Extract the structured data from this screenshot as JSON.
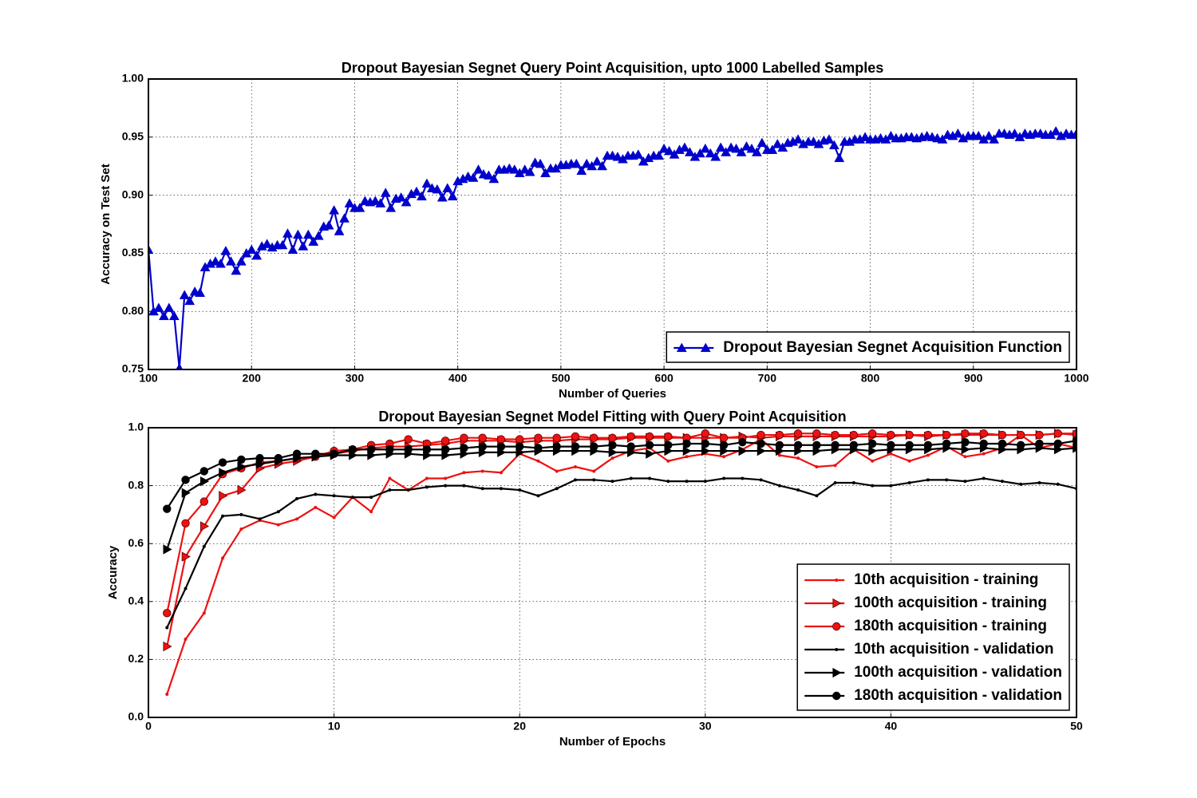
{
  "chart_data": [
    {
      "type": "line",
      "title": "Dropout Bayesian Segnet Query Point Acquisition, upto 1000 Labelled Samples",
      "xlabel": "Number of Queries",
      "ylabel": "Accuracy on Test Set",
      "xlim": [
        100,
        1000
      ],
      "ylim": [
        0.75,
        1.0
      ],
      "xticks": [
        100,
        200,
        300,
        400,
        500,
        600,
        700,
        800,
        900,
        1000
      ],
      "yticks": [
        0.75,
        {
          "value": 0.8,
          "label": "0.80"
        },
        0.85,
        {
          "value": 0.9,
          "label": "0.90"
        },
        0.95,
        {
          "value": 1.0,
          "label": "1.00"
        }
      ],
      "grid": true,
      "legend": "lower right",
      "x": [
        100,
        105,
        110,
        115,
        120,
        125,
        130,
        135,
        140,
        145,
        150,
        155,
        160,
        165,
        170,
        175,
        180,
        185,
        190,
        195,
        200,
        205,
        210,
        215,
        220,
        225,
        230,
        235,
        240,
        245,
        250,
        255,
        260,
        265,
        270,
        275,
        280,
        285,
        290,
        295,
        300,
        305,
        310,
        315,
        320,
        325,
        330,
        335,
        340,
        345,
        350,
        355,
        360,
        365,
        370,
        375,
        380,
        385,
        390,
        395,
        400,
        405,
        410,
        415,
        420,
        425,
        430,
        435,
        440,
        445,
        450,
        455,
        460,
        465,
        470,
        475,
        480,
        485,
        490,
        495,
        500,
        505,
        510,
        515,
        520,
        525,
        530,
        535,
        540,
        545,
        550,
        555,
        560,
        565,
        570,
        575,
        580,
        585,
        590,
        595,
        600,
        605,
        610,
        615,
        620,
        625,
        630,
        635,
        640,
        645,
        650,
        655,
        660,
        665,
        670,
        675,
        680,
        685,
        690,
        695,
        700,
        705,
        710,
        715,
        720,
        725,
        730,
        735,
        740,
        745,
        750,
        755,
        760,
        765,
        770,
        775,
        780,
        785,
        790,
        795,
        800,
        805,
        810,
        815,
        820,
        825,
        830,
        835,
        840,
        845,
        850,
        855,
        860,
        865,
        870,
        875,
        880,
        885,
        890,
        895,
        900,
        905,
        910,
        915,
        920,
        925,
        930,
        935,
        940,
        945,
        950,
        955,
        960,
        965,
        970,
        975,
        980,
        985,
        990,
        995,
        1000
      ],
      "series": [
        {
          "name": "Dropout Bayesian Segnet Acquisition Function",
          "color": "#0000cc",
          "marker": "triangle",
          "values": [
            0.853,
            0.8,
            0.803,
            0.796,
            0.803,
            0.796,
            0.751,
            0.814,
            0.809,
            0.817,
            0.816,
            0.838,
            0.841,
            0.843,
            0.841,
            0.852,
            0.843,
            0.835,
            0.843,
            0.85,
            0.853,
            0.848,
            0.856,
            0.858,
            0.855,
            0.857,
            0.857,
            0.867,
            0.853,
            0.866,
            0.856,
            0.866,
            0.86,
            0.865,
            0.873,
            0.874,
            0.887,
            0.869,
            0.88,
            0.893,
            0.889,
            0.889,
            0.895,
            0.894,
            0.895,
            0.893,
            0.902,
            0.889,
            0.897,
            0.898,
            0.894,
            0.901,
            0.903,
            0.899,
            0.91,
            0.906,
            0.905,
            0.898,
            0.906,
            0.899,
            0.912,
            0.914,
            0.916,
            0.915,
            0.922,
            0.918,
            0.917,
            0.914,
            0.922,
            0.922,
            0.923,
            0.922,
            0.919,
            0.922,
            0.92,
            0.928,
            0.927,
            0.919,
            0.923,
            0.923,
            0.926,
            0.926,
            0.927,
            0.927,
            0.921,
            0.927,
            0.925,
            0.929,
            0.925,
            0.934,
            0.934,
            0.933,
            0.931,
            0.934,
            0.934,
            0.935,
            0.929,
            0.932,
            0.934,
            0.934,
            0.94,
            0.938,
            0.935,
            0.939,
            0.941,
            0.937,
            0.933,
            0.936,
            0.94,
            0.936,
            0.933,
            0.941,
            0.937,
            0.941,
            0.94,
            0.937,
            0.942,
            0.94,
            0.937,
            0.945,
            0.939,
            0.939,
            0.944,
            0.941,
            0.945,
            0.946,
            0.948,
            0.944,
            0.946,
            0.946,
            0.944,
            0.947,
            0.948,
            0.943,
            0.932,
            0.946,
            0.946,
            0.948,
            0.948,
            0.95,
            0.948,
            0.948,
            0.949,
            0.948,
            0.951,
            0.949,
            0.949,
            0.95,
            0.95,
            0.949,
            0.95,
            0.951,
            0.95,
            0.949,
            0.948,
            0.952,
            0.951,
            0.953,
            0.949,
            0.951,
            0.951,
            0.951,
            0.948,
            0.951,
            0.948,
            0.953,
            0.953,
            0.952,
            0.953,
            0.95,
            0.953,
            0.952,
            0.953,
            0.953,
            0.952,
            0.952,
            0.955,
            0.951,
            0.953,
            0.952,
            0.953
          ]
        }
      ]
    },
    {
      "type": "line",
      "title": "Dropout Bayesian Segnet Model Fitting with Query Point Acquisition",
      "xlabel": "Number of Epochs",
      "ylabel": "Accuracy",
      "xlim": [
        0,
        50
      ],
      "ylim": [
        0,
        1.0
      ],
      "xticks": [
        0,
        10,
        20,
        30,
        40,
        50
      ],
      "yticks": [
        {
          "value": 0,
          "label": "0.0"
        },
        0.2,
        0.4,
        0.6,
        0.8,
        {
          "value": 1.0,
          "label": "1.0"
        }
      ],
      "grid": true,
      "legend": "lower right",
      "x": [
        1,
        2,
        3,
        4,
        5,
        6,
        7,
        8,
        9,
        10,
        11,
        12,
        13,
        14,
        15,
        16,
        17,
        18,
        19,
        20,
        21,
        22,
        23,
        24,
        25,
        26,
        27,
        28,
        29,
        30,
        31,
        32,
        33,
        34,
        35,
        36,
        37,
        38,
        39,
        40,
        41,
        42,
        43,
        44,
        45,
        46,
        47,
        48,
        49,
        50
      ],
      "series": [
        {
          "name": "10th acquisition - training",
          "color": "#ee1111",
          "marker": "point",
          "values": [
            0.08,
            0.27,
            0.36,
            0.55,
            0.65,
            0.68,
            0.665,
            0.685,
            0.725,
            0.69,
            0.76,
            0.71,
            0.825,
            0.785,
            0.825,
            0.825,
            0.845,
            0.85,
            0.845,
            0.91,
            0.885,
            0.85,
            0.865,
            0.85,
            0.895,
            0.92,
            0.93,
            0.885,
            0.9,
            0.91,
            0.9,
            0.925,
            0.96,
            0.905,
            0.895,
            0.865,
            0.87,
            0.925,
            0.885,
            0.91,
            0.885,
            0.905,
            0.935,
            0.9,
            0.91,
            0.93,
            0.975,
            0.93,
            0.945,
            0.93
          ]
        },
        {
          "name": "100th acquisition - training",
          "color": "#ee1111",
          "marker": "triangle-right",
          "values": [
            0.245,
            0.555,
            0.66,
            0.765,
            0.785,
            0.86,
            0.875,
            0.885,
            0.9,
            0.91,
            0.92,
            0.93,
            0.935,
            0.935,
            0.94,
            0.945,
            0.955,
            0.955,
            0.955,
            0.95,
            0.955,
            0.955,
            0.96,
            0.96,
            0.96,
            0.965,
            0.965,
            0.965,
            0.965,
            0.965,
            0.965,
            0.97,
            0.965,
            0.97,
            0.97,
            0.97,
            0.97,
            0.97,
            0.97,
            0.97,
            0.975,
            0.97,
            0.975,
            0.975,
            0.975,
            0.975,
            0.975,
            0.975,
            0.98,
            0.975
          ]
        },
        {
          "name": "180th acquisition - training",
          "color": "#ee1111",
          "marker": "circle",
          "values": [
            0.36,
            0.67,
            0.745,
            0.84,
            0.86,
            0.88,
            0.885,
            0.895,
            0.9,
            0.92,
            0.925,
            0.94,
            0.945,
            0.96,
            0.945,
            0.955,
            0.965,
            0.965,
            0.96,
            0.96,
            0.965,
            0.965,
            0.97,
            0.965,
            0.965,
            0.97,
            0.97,
            0.97,
            0.965,
            0.98,
            0.965,
            0.965,
            0.975,
            0.975,
            0.98,
            0.98,
            0.975,
            0.975,
            0.98,
            0.975,
            0.975,
            0.975,
            0.975,
            0.98,
            0.98,
            0.975,
            0.975,
            0.975,
            0.98,
            0.98
          ]
        },
        {
          "name": "10th acquisition - validation",
          "color": "#000000",
          "marker": "point",
          "values": [
            0.31,
            0.445,
            0.59,
            0.695,
            0.7,
            0.685,
            0.71,
            0.755,
            0.77,
            0.765,
            0.76,
            0.76,
            0.785,
            0.785,
            0.795,
            0.8,
            0.8,
            0.79,
            0.79,
            0.785,
            0.765,
            0.79,
            0.82,
            0.82,
            0.815,
            0.825,
            0.825,
            0.815,
            0.815,
            0.815,
            0.825,
            0.825,
            0.82,
            0.8,
            0.785,
            0.765,
            0.81,
            0.81,
            0.8,
            0.8,
            0.81,
            0.82,
            0.82,
            0.815,
            0.825,
            0.815,
            0.805,
            0.81,
            0.805,
            0.79
          ]
        },
        {
          "name": "100th acquisition - validation",
          "color": "#000000",
          "marker": "triangle-right",
          "values": [
            0.58,
            0.775,
            0.815,
            0.845,
            0.865,
            0.875,
            0.885,
            0.895,
            0.9,
            0.905,
            0.905,
            0.905,
            0.91,
            0.91,
            0.905,
            0.905,
            0.91,
            0.915,
            0.915,
            0.915,
            0.92,
            0.92,
            0.92,
            0.92,
            0.915,
            0.915,
            0.91,
            0.92,
            0.92,
            0.92,
            0.92,
            0.92,
            0.92,
            0.92,
            0.92,
            0.92,
            0.925,
            0.925,
            0.92,
            0.925,
            0.925,
            0.925,
            0.93,
            0.925,
            0.93,
            0.925,
            0.925,
            0.93,
            0.925,
            0.93
          ]
        },
        {
          "name": "180th acquisition - validation",
          "color": "#000000",
          "marker": "circle",
          "values": [
            0.72,
            0.82,
            0.85,
            0.88,
            0.89,
            0.895,
            0.895,
            0.91,
            0.91,
            0.91,
            0.925,
            0.925,
            0.925,
            0.925,
            0.925,
            0.925,
            0.93,
            0.935,
            0.935,
            0.935,
            0.93,
            0.935,
            0.935,
            0.935,
            0.94,
            0.935,
            0.94,
            0.94,
            0.945,
            0.945,
            0.94,
            0.95,
            0.945,
            0.94,
            0.94,
            0.94,
            0.94,
            0.94,
            0.945,
            0.94,
            0.94,
            0.94,
            0.945,
            0.95,
            0.945,
            0.945,
            0.94,
            0.945,
            0.945,
            0.955
          ]
        }
      ]
    }
  ]
}
